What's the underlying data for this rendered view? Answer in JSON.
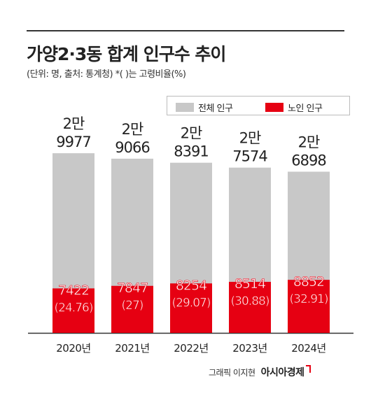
{
  "header": {
    "title": "가양2·3동 합계 인구수 추이",
    "subtitle": "(단위: 명, 출처: 통계청)  *(  )는 고령비율(%)"
  },
  "legend": {
    "total_label": "전체 인구",
    "elder_label": "노인 인구"
  },
  "footer": {
    "credit": "그래픽 이지현",
    "brand": "아시아경제"
  },
  "colors": {
    "total": "#c8c8c8",
    "elder": "#e60012",
    "elder_text": "#ffffff",
    "value_text": "#222222"
  },
  "chart_data": {
    "type": "bar",
    "title": "가양2·3동 합계 인구수 추이",
    "categories": [
      "2020년",
      "2021년",
      "2022년",
      "2023년",
      "2024년"
    ],
    "series": [
      {
        "name": "전체 인구",
        "values": [
          29977,
          29066,
          28391,
          27574,
          26898
        ]
      },
      {
        "name": "노인 인구",
        "values": [
          7422,
          7847,
          8254,
          8514,
          8852
        ]
      }
    ],
    "total_labels": [
      [
        "2만",
        "9977"
      ],
      [
        "2만",
        "9066"
      ],
      [
        "2만",
        "8391"
      ],
      [
        "2만",
        "7574"
      ],
      [
        "2만",
        "6898"
      ]
    ],
    "elder_labels": [
      "7422",
      "7847",
      "8254",
      "8514",
      "8852"
    ],
    "elder_ratio_labels": [
      "(24.76)",
      "(27)",
      "(29.07)",
      "(30.88)",
      "(32.91)"
    ],
    "grid": false,
    "legend_position": "top-right"
  }
}
